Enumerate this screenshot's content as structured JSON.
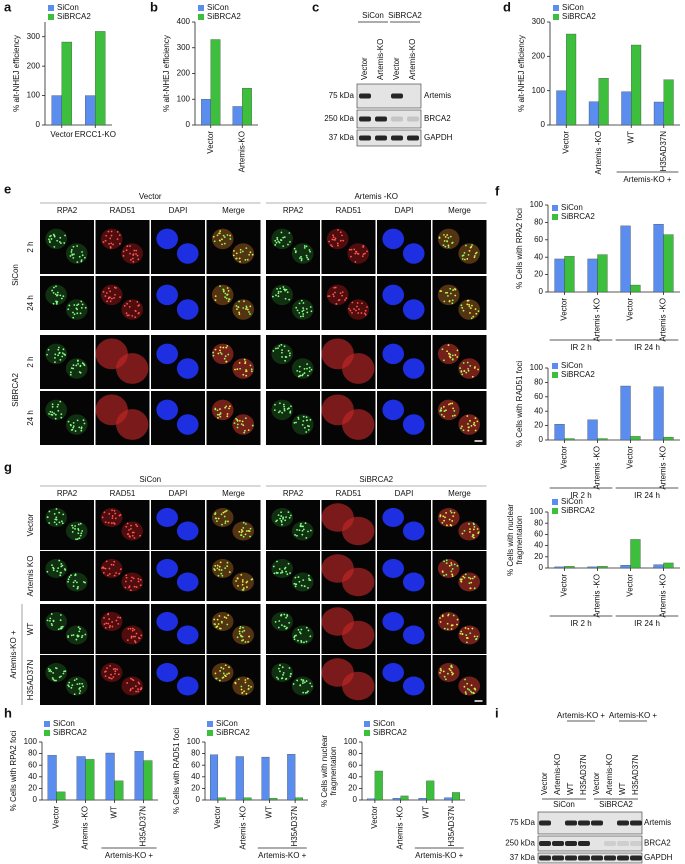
{
  "panels": [
    "a",
    "b",
    "c",
    "d",
    "e",
    "f",
    "g",
    "h",
    "i"
  ],
  "chart_data": [
    {
      "type": "bar",
      "ylabel": [
        "% alt-NHEJ efficiency"
      ],
      "groups": [
        {
          "categories": [
            "Vector"
          ]
        },
        {
          "categories": [
            "ERCC1-KO"
          ]
        }
      ],
      "series": [
        {
          "name": "SiCon",
          "color": "#5b8def",
          "values": [
            100,
            100
          ]
        },
        {
          "name": "SiBRCA2",
          "color": "#3dbf3d",
          "values": [
            282,
            318
          ]
        }
      ],
      "ylim": [
        0,
        350
      ],
      "yticks": [
        0,
        100,
        200,
        300
      ]
    },
    {
      "type": "bar",
      "ylabel": [
        "% alt-NHEJ efficiency"
      ],
      "groups": [
        {
          "categories": [
            "Vector"
          ]
        },
        {
          "categories": [
            "Artemis-KO"
          ]
        }
      ],
      "series": [
        {
          "name": "SiCon",
          "color": "#5b8def",
          "values": [
            100,
            72
          ]
        },
        {
          "name": "SiBRCA2",
          "color": "#3dbf3d",
          "values": [
            332,
            143
          ]
        }
      ],
      "ylim": [
        0,
        400
      ],
      "yticks": [
        0,
        100,
        200,
        300,
        400
      ]
    },
    {
      "type": "bar",
      "ylabel": [
        "% alt-NHEJ efficiency"
      ],
      "groups": [
        {
          "categories": [
            "Vector"
          ]
        },
        {
          "categories": [
            "Artemis -KO"
          ]
        },
        {
          "label": "Artemis-KO +",
          "categories": [
            "WT",
            "H35AD37N"
          ]
        }
      ],
      "series": [
        {
          "name": "SiCon",
          "color": "#5b8def",
          "values": [
            100,
            68,
            97,
            67
          ]
        },
        {
          "name": "SiBRCA2",
          "color": "#3dbf3d",
          "values": [
            265,
            136,
            233,
            132
          ]
        }
      ],
      "ylim": [
        0,
        300
      ],
      "yticks": [
        0,
        100,
        200,
        300
      ]
    },
    {
      "type": "bar",
      "ylabel": [
        "% Cells with RPA2 foci"
      ],
      "groups": [
        {
          "label": "IR 2 h",
          "categories": [
            "Vector",
            "Artemis -KO"
          ]
        },
        {
          "label": "IR 24 h",
          "categories": [
            "Vector",
            "Artemis -KO"
          ]
        }
      ],
      "series": [
        {
          "name": "SiCon",
          "color": "#5b8def",
          "values": [
            38,
            38,
            76,
            78
          ]
        },
        {
          "name": "SiBRCA2",
          "color": "#3dbf3d",
          "values": [
            41,
            43,
            8,
            66
          ]
        }
      ],
      "ylim": [
        0,
        100
      ],
      "yticks": [
        0,
        20,
        40,
        60,
        80,
        100
      ]
    },
    {
      "type": "bar",
      "ylabel": [
        "% Cells with RAD51 foci"
      ],
      "groups": [
        {
          "label": "IR 2 h",
          "categories": [
            "Vector",
            "Artemis -KO"
          ]
        },
        {
          "label": "IR 24 h",
          "categories": [
            "Vector",
            "Artemis -KO"
          ]
        }
      ],
      "series": [
        {
          "name": "SiCon",
          "color": "#5b8def",
          "values": [
            22,
            28,
            75,
            74
          ]
        },
        {
          "name": "SiBRCA2",
          "color": "#3dbf3d",
          "values": [
            2,
            2,
            5,
            4
          ]
        }
      ],
      "ylim": [
        0,
        100
      ],
      "yticks": [
        0,
        20,
        40,
        60,
        80,
        100
      ]
    },
    {
      "type": "bar",
      "ylabel": [
        "% Cells with nuclear",
        "fragmentation"
      ],
      "groups": [
        {
          "label": "IR 2 h",
          "categories": [
            "Vector",
            "Artemis -KO"
          ]
        },
        {
          "label": "IR 24 h",
          "categories": [
            "Vector",
            "Artemis -KO"
          ]
        }
      ],
      "series": [
        {
          "name": "SiCon",
          "color": "#5b8def",
          "values": [
            2,
            2,
            5,
            6
          ]
        },
        {
          "name": "SiBRCA2",
          "color": "#3dbf3d",
          "values": [
            3,
            3,
            51,
            9
          ]
        }
      ],
      "ylim": [
        0,
        100
      ],
      "yticks": [
        0,
        20,
        40,
        60,
        80,
        100
      ]
    },
    {
      "type": "bar",
      "ylabel": [
        "% Cells with RPA2 foci"
      ],
      "groups": [
        {
          "categories": [
            "Vector"
          ]
        },
        {
          "categories": [
            "Artemis -KO"
          ]
        },
        {
          "label": "Artemis-KO +",
          "categories": [
            "WT",
            "H35AD37N"
          ]
        }
      ],
      "series": [
        {
          "name": "SiCon",
          "color": "#5b8def",
          "values": [
            77,
            75,
            81,
            84
          ]
        },
        {
          "name": "SiBRCA2",
          "color": "#3dbf3d",
          "values": [
            14,
            70,
            33,
            68
          ]
        }
      ],
      "ylim": [
        0,
        100
      ],
      "yticks": [
        0,
        20,
        40,
        60,
        80,
        100
      ]
    },
    {
      "type": "bar",
      "ylabel": [
        "% Cells with RAD51 foci"
      ],
      "groups": [
        {
          "categories": [
            "Vector"
          ]
        },
        {
          "categories": [
            "Artemis -KO"
          ]
        },
        {
          "label": "Artemis-KO +",
          "categories": [
            "WT",
            "H35AD37N"
          ]
        }
      ],
      "series": [
        {
          "name": "SiCon",
          "color": "#5b8def",
          "values": [
            78,
            75,
            74,
            79
          ]
        },
        {
          "name": "SiBRCA2",
          "color": "#3dbf3d",
          "values": [
            4,
            4,
            3,
            4
          ]
        }
      ],
      "ylim": [
        0,
        100
      ],
      "yticks": [
        0,
        20,
        40,
        60,
        80,
        100
      ]
    },
    {
      "type": "bar",
      "ylabel": [
        "% Cells with nuclear",
        "fragmentation"
      ],
      "groups": [
        {
          "categories": [
            "Vector"
          ]
        },
        {
          "categories": [
            "Artemis -KO"
          ]
        },
        {
          "label": "Artemis-KO +",
          "categories": [
            "WT",
            "H35AD37N"
          ]
        }
      ],
      "series": [
        {
          "name": "SiCon",
          "color": "#5b8def",
          "values": [
            2,
            3,
            3,
            4
          ]
        },
        {
          "name": "SiBRCA2",
          "color": "#3dbf3d",
          "values": [
            50,
            7,
            33,
            13
          ]
        }
      ],
      "ylim": [
        0,
        100
      ],
      "yticks": [
        0,
        20,
        40,
        60,
        80,
        100
      ]
    }
  ],
  "blot_c": {
    "groups": [
      "SiCon",
      "SiBRCA2"
    ],
    "lanes": [
      "Vector",
      "Artemis-KO",
      "Vector",
      "Artemis-KO"
    ],
    "markers": [
      "75 kDa",
      "250 kDa",
      "37 kDa"
    ],
    "bands": [
      "Artemis",
      "BRCA2",
      "GAPDH"
    ]
  },
  "images_e": {
    "column_groups": [
      {
        "label": "Vector",
        "channels": [
          "RPA2",
          "RAD51",
          "DAPI",
          "Merge"
        ]
      },
      {
        "label": "Artemis -KO",
        "channels": [
          "RPA2",
          "RAD51",
          "DAPI",
          "Merge"
        ]
      }
    ],
    "rows": [
      {
        "label": "SiCon",
        "times": [
          "2 h",
          "24 h"
        ]
      },
      {
        "label": "SiBRCA2",
        "times": [
          "2 h",
          "24 h"
        ]
      }
    ]
  },
  "images_g": {
    "column_groups": [
      {
        "label": "SiCon",
        "channels": [
          "RPA2",
          "RAD51",
          "DAPI",
          "Merge"
        ]
      },
      {
        "label": "SiBRCA2",
        "channels": [
          "RPA2",
          "RAD51",
          "DAPI",
          "Merge"
        ]
      }
    ],
    "rows": [
      "Vector",
      "Artemis KO",
      "WT",
      "H35AD37N"
    ],
    "row_group": "Artemis-KO +"
  },
  "blot_i": {
    "headers": [
      "Artemis-KO +",
      "Artemis-KO +"
    ],
    "groups": [
      "SiCon",
      "SiBRCA2"
    ],
    "lanes": [
      "Vector",
      "Artemis-KO",
      "WT",
      "H35AD37N",
      "Vector",
      "Artemis-KO",
      "WT",
      "H35AD37N"
    ],
    "markers": [
      "75 kDa",
      "250 kDa",
      "37 kDa"
    ],
    "bands": [
      "Artemis",
      "BRCA2",
      "GAPDH"
    ]
  }
}
